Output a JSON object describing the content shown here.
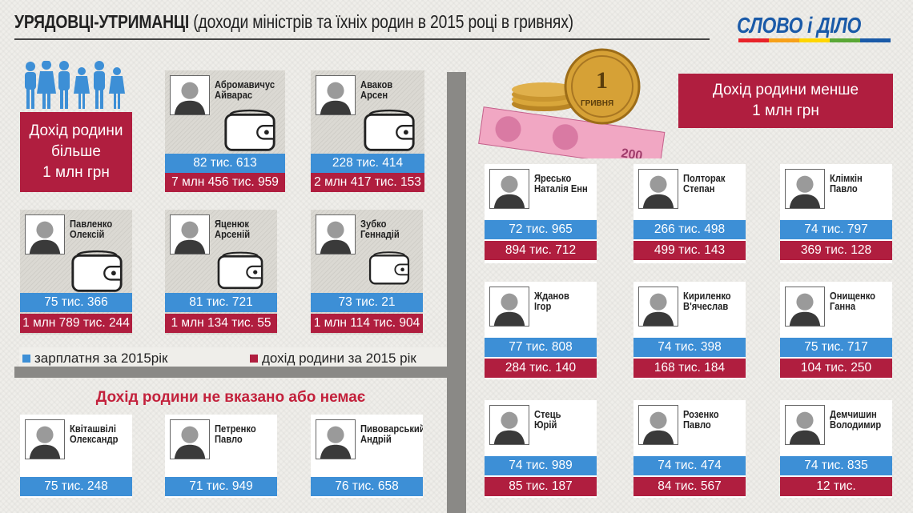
{
  "title": {
    "bold": "УРЯДОВЦІ-УТРИМАНЦІ",
    "rest": " (доходи міністрів та їхніх родин в 2015 році в гривнях)"
  },
  "logo": {
    "text": "СЛОВО і ДІЛО"
  },
  "colors": {
    "salary": "#3d8fd6",
    "family": "#b01e3f",
    "divider": "#8a8986"
  },
  "left_badge": {
    "line1": "Дохід родини",
    "line2": "більше",
    "line3": "1 млн грн"
  },
  "right_badge": {
    "line1": "Дохід родини менше",
    "line2": "1 млн грн"
  },
  "legend": {
    "salary": "зарплатня за 2015рік",
    "family": "дохід родини за 2015 рік"
  },
  "no_income_title": "Дохід родини не вказано або немає",
  "coin_label": "ГРИВНЯ",
  "coin_number": "1",
  "banknote_number": "200",
  "big_income": [
    {
      "first": "Абромавичус",
      "second": "Айварас",
      "salary": "82 тис. 613",
      "family": "7 млн 456 тис. 959"
    },
    {
      "first": "Аваков",
      "second": "Арсен",
      "salary": "228 тис. 414",
      "family": "2 млн 417 тис. 153"
    },
    {
      "first": "Павленко",
      "second": "Олексій",
      "salary": "75 тис. 366",
      "family": "1 млн 789 тис. 244"
    },
    {
      "first": "Яценюк",
      "second": "Арсеній",
      "salary": "81 тис. 721",
      "family": "1 млн 134 тис. 55"
    },
    {
      "first": "Зубко",
      "second": "Геннадій",
      "salary": "73 тис. 21",
      "family": "1 млн 114 тис. 904"
    }
  ],
  "no_income": [
    {
      "first": "Квіташвілі",
      "second": "Олександр",
      "salary": "75 тис. 248"
    },
    {
      "first": "Петренко",
      "second": "Павло",
      "salary": "71 тис. 949"
    },
    {
      "first": "Пивоварський",
      "second": "Андрій",
      "salary": "76 тис. 658"
    }
  ],
  "small_income": [
    {
      "first": "Яресько",
      "second": "Наталія Енн",
      "salary": "72 тис. 965",
      "family": "894 тис. 712"
    },
    {
      "first": "Полторак",
      "second": "Степан",
      "salary": "266 тис. 498",
      "family": "499 тис. 143"
    },
    {
      "first": "Клімкін",
      "second": "Павло",
      "salary": "74 тис. 797",
      "family": "369 тис. 128"
    },
    {
      "first": "Жданов",
      "second": "Ігор",
      "salary": "77 тис. 808",
      "family": "284 тис. 140"
    },
    {
      "first": "Кириленко",
      "second": "В'ячеслав",
      "salary": "74 тис. 398",
      "family": "168 тис. 184"
    },
    {
      "first": "Онищенко",
      "second": "Ганна",
      "salary": "75 тис. 717",
      "family": "104 тис. 250"
    },
    {
      "first": "Стець",
      "second": "Юрій",
      "salary": "74 тис. 989",
      "family": "85 тис. 187"
    },
    {
      "first": "Розенко",
      "second": "Павло",
      "salary": "74 тис. 474",
      "family": "84 тис. 567"
    },
    {
      "first": "Демчишин",
      "second": "Володимир",
      "salary": "74 тис. 835",
      "family": "12 тис."
    }
  ]
}
